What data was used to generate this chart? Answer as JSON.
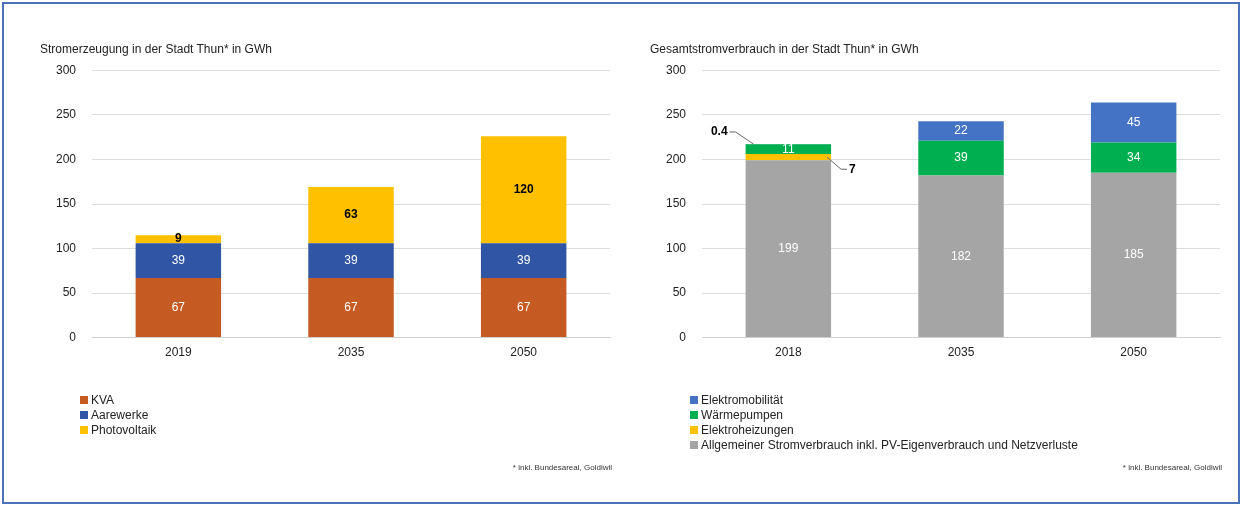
{
  "chart_data": [
    {
      "type": "bar",
      "title": "Stromerzeugung in der Stadt Thun* in GWh",
      "categories": [
        "2019",
        "2035",
        "2050"
      ],
      "stacked": true,
      "ylim": [
        0,
        300
      ],
      "yticks": [
        0,
        50,
        100,
        150,
        200,
        250,
        300
      ],
      "grid": "y",
      "legend": "bottom",
      "data_labels": true,
      "series": [
        {
          "name": "KVA",
          "color": "#c55a22",
          "values": [
            67,
            67,
            67
          ]
        },
        {
          "name": "Aarewerke",
          "color": "#2f55a4",
          "values": [
            39,
            39,
            39
          ]
        },
        {
          "name": "Photovoltaik",
          "color": "#ffc000",
          "values": [
            9,
            63,
            120
          ]
        }
      ],
      "annotations": [
        "* inkl. Bundesareal, Goldiwil"
      ]
    },
    {
      "type": "bar",
      "title": "Gesamtstromverbrauch in der Stadt Thun* in GWh",
      "categories": [
        "2018",
        "2035",
        "2050"
      ],
      "stacked": true,
      "ylim": [
        0,
        300
      ],
      "yticks": [
        0,
        50,
        100,
        150,
        200,
        250,
        300
      ],
      "grid": "y",
      "legend": "bottom",
      "data_labels": true,
      "series": [
        {
          "name": "Allgemeiner Stromverbrauch inkl. PV-Eigenverbrauch und Netzverluste",
          "color": "#a5a5a5",
          "values": [
            199,
            182,
            185
          ]
        },
        {
          "name": "Elektroheizungen",
          "color": "#ffc000",
          "values": [
            7,
            null,
            null
          ]
        },
        {
          "name": "Wärmepumpen",
          "color": "#00b050",
          "values": [
            11,
            39,
            34
          ]
        },
        {
          "name": "Elektromobilität",
          "color": "#4472c4",
          "values": [
            0.4,
            22,
            45
          ]
        }
      ],
      "annotations": [
        "* inkl. Bundesareal, Goldiwil"
      ]
    }
  ]
}
